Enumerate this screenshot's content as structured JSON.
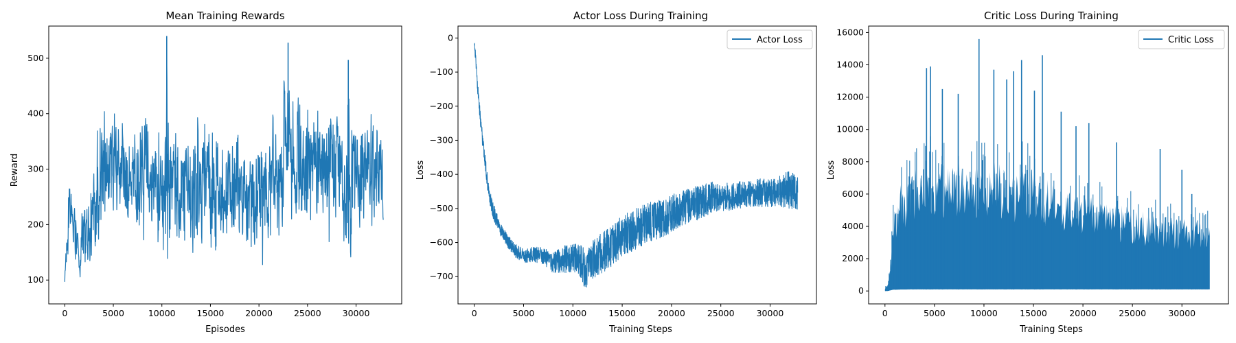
{
  "chart_data": [
    {
      "type": "line",
      "title": "Mean Training Rewards",
      "xlabel": "Episodes",
      "ylabel": "Reward",
      "xlim": [
        -1650,
        34700
      ],
      "ylim": [
        57,
        558
      ],
      "xticks": [
        0,
        5000,
        10000,
        15000,
        20000,
        25000,
        30000
      ],
      "yticks": [
        100,
        200,
        300,
        400,
        500
      ],
      "xtick_labels": [
        "0",
        "5000",
        "10000",
        "15000",
        "20000",
        "25000",
        "30000"
      ],
      "ytick_labels": [
        "100",
        "200",
        "300",
        "400",
        "500"
      ],
      "grid": false,
      "legend": null,
      "color": "#1f77b4",
      "rendering": "noisy band",
      "series": [
        {
          "x": [
            0,
            150,
            200,
            400,
            600,
            800,
            1000,
            1200,
            1500,
            1800,
            2200,
            2500,
            2800,
            3100,
            3400,
            3800,
            4300,
            4800,
            5200,
            5800,
            6300,
            7000,
            7600,
            8200,
            8600,
            9100,
            9600,
            10200,
            10500,
            11000,
            11800,
            12600,
            13400,
            14000,
            14700,
            15300,
            16000,
            16800,
            17600,
            18200,
            18800,
            19400,
            20000,
            20600,
            21200,
            21600,
            22200,
            22800,
            23200,
            23800,
            24400,
            25000,
            25600,
            26200,
            26800,
            27400,
            28000,
            28600,
            29200,
            29600,
            30000,
            30600,
            31200,
            31800,
            32300,
            32800
          ],
          "y_low": [
            90,
            65,
            110,
            150,
            170,
            130,
            120,
            100,
            95,
            90,
            100,
            90,
            95,
            140,
            160,
            150,
            200,
            190,
            210,
            180,
            170,
            160,
            165,
            150,
            170,
            140,
            155,
            120,
            90,
            100,
            130,
            150,
            120,
            110,
            150,
            140,
            150,
            130,
            150,
            160,
            150,
            130,
            140,
            120,
            160,
            150,
            170,
            180,
            210,
            190,
            180,
            170,
            180,
            180,
            160,
            150,
            140,
            130,
            120,
            100,
            180,
            150,
            170,
            180,
            150,
            150
          ],
          "y_high": [
            130,
            200,
            250,
            350,
            310,
            240,
            250,
            210,
            220,
            280,
            290,
            270,
            300,
            350,
            380,
            400,
            420,
            410,
            430,
            420,
            400,
            380,
            390,
            420,
            410,
            380,
            380,
            400,
            540,
            440,
            380,
            380,
            390,
            400,
            380,
            370,
            380,
            360,
            390,
            380,
            390,
            380,
            390,
            380,
            400,
            420,
            440,
            500,
            530,
            470,
            440,
            420,
            450,
            440,
            430,
            440,
            430,
            410,
            500,
            450,
            430,
            410,
            420,
            400,
            410,
            380
          ],
          "y_mean": [
            100,
            150,
            180,
            230,
            240,
            180,
            160,
            150,
            140,
            170,
            190,
            170,
            200,
            240,
            260,
            270,
            290,
            280,
            300,
            290,
            270,
            260,
            260,
            270,
            280,
            250,
            250,
            240,
            260,
            240,
            240,
            250,
            240,
            240,
            240,
            240,
            240,
            230,
            250,
            250,
            250,
            240,
            250,
            240,
            260,
            270,
            290,
            300,
            310,
            290,
            280,
            270,
            280,
            290,
            280,
            280,
            270,
            260,
            280,
            260,
            280,
            270,
            280,
            270,
            260,
            250
          ],
          "peaks": [
            {
              "x": 10500,
              "y": 540
            },
            {
              "x": 23000,
              "y": 528
            },
            {
              "x": 29200,
              "y": 497
            }
          ]
        }
      ]
    },
    {
      "type": "line",
      "title": "Actor Loss During Training",
      "xlabel": "Training Steps",
      "ylabel": "Loss",
      "xlim": [
        -1650,
        34700
      ],
      "ylim": [
        -780,
        35
      ],
      "xticks": [
        0,
        5000,
        10000,
        15000,
        20000,
        25000,
        30000
      ],
      "yticks": [
        0,
        -100,
        -200,
        -300,
        -400,
        -500,
        -600,
        -700
      ],
      "xtick_labels": [
        "0",
        "5000",
        "10000",
        "15000",
        "20000",
        "25000",
        "30000"
      ],
      "ytick_labels": [
        "0",
        "−100",
        "−200",
        "−300",
        "−400",
        "−500",
        "−600",
        "−700"
      ],
      "grid": false,
      "legend": {
        "placement": "top-right",
        "entries": [
          "Actor Loss"
        ]
      },
      "color": "#1f77b4",
      "rendering": "noisy band",
      "series": [
        {
          "name": "Actor Loss",
          "x": [
            0,
            100,
            300,
            600,
            1000,
            1500,
            2000,
            2500,
            3000,
            3500,
            4000,
            4500,
            5000,
            6000,
            7000,
            8000,
            9000,
            10000,
            10500,
            11000,
            11300,
            11600,
            12000,
            13000,
            14000,
            15000,
            16000,
            17000,
            18000,
            19000,
            20000,
            21000,
            22000,
            23000,
            24000,
            25000,
            26000,
            27000,
            28000,
            29000,
            30000,
            31000,
            32000,
            32800
          ],
          "y_low": [
            -20,
            -60,
            -150,
            -250,
            -370,
            -480,
            -540,
            -570,
            -600,
            -620,
            -640,
            -650,
            -660,
            -655,
            -665,
            -690,
            -690,
            -685,
            -690,
            -720,
            -745,
            -715,
            -705,
            -690,
            -670,
            -640,
            -625,
            -610,
            -600,
            -585,
            -570,
            -555,
            -540,
            -530,
            -515,
            -510,
            -505,
            -500,
            -498,
            -496,
            -495,
            -495,
            -500,
            -505
          ],
          "y_high": [
            -2,
            -30,
            -110,
            -210,
            -320,
            -440,
            -490,
            -530,
            -560,
            -580,
            -600,
            -610,
            -620,
            -610,
            -615,
            -630,
            -610,
            -600,
            -600,
            -610,
            -640,
            -610,
            -590,
            -570,
            -550,
            -520,
            -500,
            -490,
            -480,
            -470,
            -460,
            -450,
            -440,
            -430,
            -420,
            -430,
            -420,
            -420,
            -420,
            -410,
            -415,
            -400,
            -385,
            -410
          ],
          "y_mean": [
            -10,
            -45,
            -130,
            -230,
            -345,
            -460,
            -515,
            -550,
            -580,
            -600,
            -620,
            -630,
            -640,
            -635,
            -640,
            -660,
            -650,
            -645,
            -645,
            -665,
            -690,
            -660,
            -650,
            -630,
            -610,
            -580,
            -565,
            -550,
            -540,
            -530,
            -515,
            -500,
            -490,
            -480,
            -468,
            -470,
            -465,
            -460,
            -458,
            -455,
            -455,
            -450,
            -445,
            -455
          ]
        }
      ]
    },
    {
      "type": "line",
      "title": "Critic Loss During Training",
      "xlabel": "Training Steps",
      "ylabel": "Loss",
      "xlim": [
        -1650,
        34700
      ],
      "ylim": [
        -800,
        16400
      ],
      "xticks": [
        0,
        5000,
        10000,
        15000,
        20000,
        25000,
        30000
      ],
      "yticks": [
        0,
        2000,
        4000,
        6000,
        8000,
        10000,
        12000,
        14000,
        16000
      ],
      "xtick_labels": [
        "0",
        "5000",
        "10000",
        "15000",
        "20000",
        "25000",
        "30000"
      ],
      "ytick_labels": [
        "0",
        "2000",
        "4000",
        "6000",
        "8000",
        "10000",
        "12000",
        "14000",
        "16000"
      ],
      "grid": false,
      "legend": {
        "placement": "top-right",
        "entries": [
          "Critic Loss"
        ]
      },
      "color": "#1f77b4",
      "rendering": "dense band",
      "series": [
        {
          "name": "Critic Loss",
          "x": [
            0,
            300,
            600,
            800,
            1000,
            1500,
            2000,
            2500,
            3000,
            3500,
            4000,
            5000,
            6000,
            7000,
            8000,
            9000,
            10000,
            11000,
            12000,
            13000,
            14000,
            15000,
            16000,
            17000,
            18000,
            19000,
            20000,
            21000,
            22000,
            23000,
            24000,
            25000,
            26000,
            27000,
            28000,
            29000,
            30000,
            31000,
            32000,
            32800
          ],
          "y_low": [
            0,
            0,
            50,
            80,
            80,
            90,
            90,
            100,
            100,
            100,
            100,
            100,
            100,
            100,
            100,
            100,
            100,
            100,
            100,
            100,
            100,
            100,
            100,
            100,
            100,
            100,
            100,
            100,
            100,
            100,
            100,
            100,
            100,
            100,
            100,
            100,
            100,
            100,
            100,
            100
          ],
          "y_high": [
            200,
            500,
            2000,
            4500,
            5500,
            6500,
            7000,
            7200,
            7500,
            7800,
            8000,
            8200,
            8000,
            8000,
            8000,
            7800,
            8000,
            8000,
            7800,
            7600,
            7800,
            7500,
            7200,
            6800,
            6500,
            6200,
            6000,
            5800,
            5600,
            5400,
            5300,
            5200,
            5000,
            4800,
            4700,
            4600,
            4500,
            4400,
            4300,
            4200
          ],
          "y_mean": [
            100,
            250,
            1000,
            2200,
            2600,
            3000,
            3200,
            3300,
            3500,
            3600,
            3700,
            3800,
            3700,
            3700,
            3700,
            3600,
            3700,
            3700,
            3600,
            3500,
            3600,
            3500,
            3300,
            3100,
            3000,
            2900,
            2800,
            2700,
            2600,
            2500,
            2450,
            2400,
            2300,
            2200,
            2150,
            2100,
            2050,
            2000,
            1950,
            1900
          ],
          "peaks": [
            {
              "x": 4200,
              "y": 13800
            },
            {
              "x": 4600,
              "y": 13900
            },
            {
              "x": 5800,
              "y": 12500
            },
            {
              "x": 7400,
              "y": 12200
            },
            {
              "x": 9500,
              "y": 15600
            },
            {
              "x": 11000,
              "y": 13700
            },
            {
              "x": 12300,
              "y": 13100
            },
            {
              "x": 13000,
              "y": 13600
            },
            {
              "x": 13800,
              "y": 14300
            },
            {
              "x": 15100,
              "y": 12400
            },
            {
              "x": 15900,
              "y": 14600
            },
            {
              "x": 17800,
              "y": 11100
            },
            {
              "x": 19300,
              "y": 10200
            },
            {
              "x": 20600,
              "y": 10400
            },
            {
              "x": 23400,
              "y": 9200
            },
            {
              "x": 27800,
              "y": 8800
            },
            {
              "x": 30000,
              "y": 7500
            },
            {
              "x": 31000,
              "y": 6000
            }
          ]
        }
      ]
    }
  ]
}
